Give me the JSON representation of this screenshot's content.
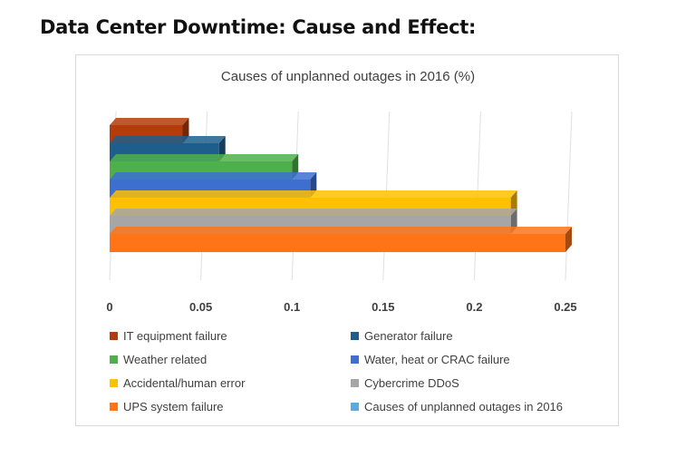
{
  "page": {
    "heading": "Data Center Downtime: Cause and Effect:"
  },
  "chart_data": {
    "type": "bar",
    "orientation": "horizontal",
    "title": "Causes of unplanned outages in 2016 (%)",
    "xlabel": "",
    "ylabel": "",
    "xlim": [
      0,
      0.25
    ],
    "x_ticks": [
      "0",
      "0.05",
      "0.1",
      "0.15",
      "0.2",
      "0.25"
    ],
    "grid": "vertical",
    "legend_position": "bottom",
    "series": [
      {
        "name": "IT equipment failure",
        "value": 0.04,
        "color": "#b33c0a"
      },
      {
        "name": "Generator failure",
        "value": 0.06,
        "color": "#1d5e8c"
      },
      {
        "name": "Weather related",
        "value": 0.1,
        "color": "#4db04a"
      },
      {
        "name": "Water, heat or CRAC failure",
        "value": 0.11,
        "color": "#3d6fd1"
      },
      {
        "name": "Accidental/human error",
        "value": 0.22,
        "color": "#ffc000"
      },
      {
        "name": "Cybercrime DDoS",
        "value": 0.22,
        "color": "#a6a6a6"
      },
      {
        "name": "UPS system failure",
        "value": 0.25,
        "color": "#ff7417"
      },
      {
        "name": "Causes of unplanned outages in 2016",
        "value": null,
        "color": "#5aa9df"
      }
    ]
  }
}
